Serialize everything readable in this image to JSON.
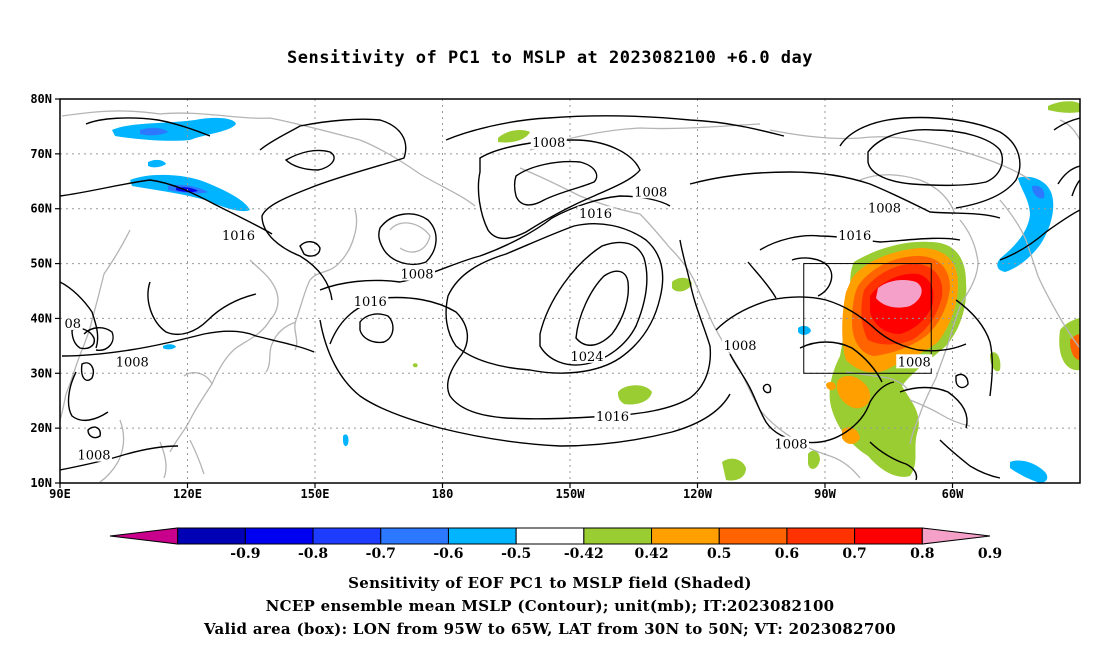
{
  "title": "Sensitivity of PC1 to MSLP at 2023082100 +6.0 day",
  "map": {
    "lat_labels": [
      "80N",
      "70N",
      "60N",
      "50N",
      "40N",
      "30N",
      "20N",
      "10N"
    ],
    "lon_labels": [
      "90E",
      "120E",
      "150E",
      "180",
      "150W",
      "120W",
      "90W",
      "60W"
    ],
    "contour_labels": [
      {
        "text": "1008",
        "lon": 205,
        "lat": 72
      },
      {
        "text": "1008",
        "lon": 229,
        "lat": 63
      },
      {
        "text": "1016",
        "lon": 216,
        "lat": 59
      },
      {
        "text": "1008",
        "lon": 284,
        "lat": 60
      },
      {
        "text": "1016",
        "lon": 277,
        "lat": 55
      },
      {
        "text": "1016",
        "lon": 132,
        "lat": 55
      },
      {
        "text": "1008",
        "lon": 174,
        "lat": 48
      },
      {
        "text": "1016",
        "lon": 163,
        "lat": 43
      },
      {
        "text": "08",
        "lon": 93,
        "lat": 39
      },
      {
        "text": "1024",
        "lon": 214,
        "lat": 33
      },
      {
        "text": "1008",
        "lon": 107,
        "lat": 32
      },
      {
        "text": "1008",
        "lon": 250,
        "lat": 35
      },
      {
        "text": "1008",
        "lon": 291,
        "lat": 32
      },
      {
        "text": "1016",
        "lon": 220,
        "lat": 22
      },
      {
        "text": "1008",
        "lon": 98,
        "lat": 15
      },
      {
        "text": "1008",
        "lon": 262,
        "lat": 17
      }
    ],
    "valid_box": {
      "lon_from": 265,
      "lon_to": 295,
      "lat_from": 30,
      "lat_to": 50
    }
  },
  "colorbar": {
    "labels": [
      "-0.9",
      "-0.8",
      "-0.7",
      "-0.6",
      "-0.5",
      "-0.42",
      "0.42",
      "0.5",
      "0.6",
      "0.7",
      "0.8",
      "0.9"
    ],
    "colors": [
      "#c8008c",
      "#0000b4",
      "#0000f0",
      "#1e3cff",
      "#2c78ff",
      "#00b4ff",
      "#ffffff",
      "#9acd32",
      "#ffa000",
      "#ff6400",
      "#ff3200",
      "#ff0000",
      "#f4a0c8"
    ]
  },
  "footer": {
    "line1": "Sensitivity of EOF PC1 to MSLP field (Shaded)",
    "line2": "NCEP ensemble mean MSLP (Contour); unit(mb); IT:2023082100",
    "line3": "Valid area (box): LON from 95W to 65W, LAT from 30N to 50N; VT: 2023082700"
  }
}
